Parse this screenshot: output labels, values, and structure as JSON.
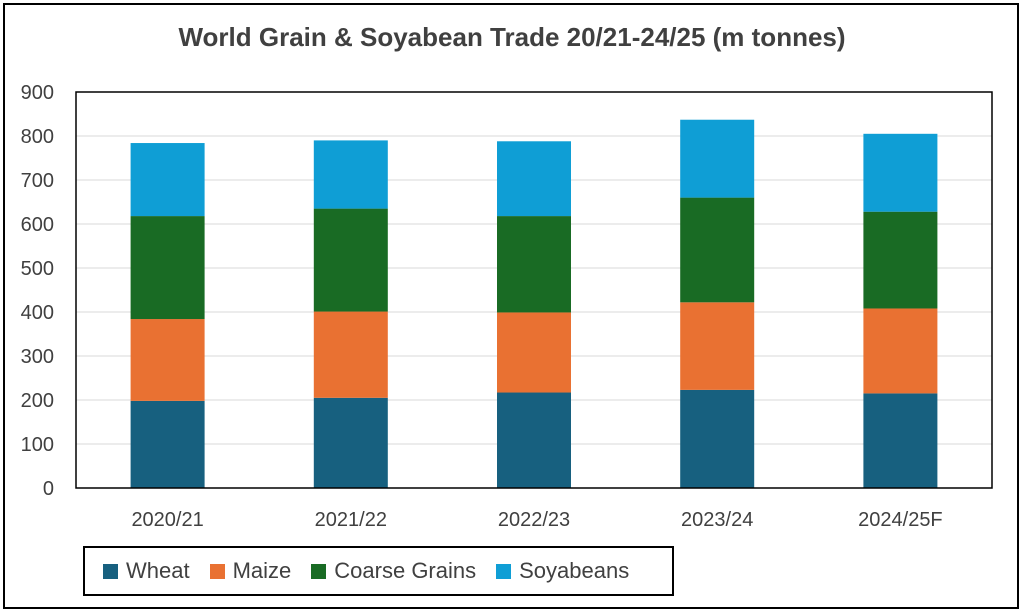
{
  "chart_data": {
    "type": "bar",
    "stacked": true,
    "title": "World Grain & Soyabean Trade 20/21-24/25 (m tonnes)",
    "xlabel": "",
    "ylabel": "",
    "ylim": [
      0,
      900
    ],
    "yticks": [
      0,
      100,
      200,
      300,
      400,
      500,
      600,
      700,
      800,
      900
    ],
    "grid": true,
    "legend_position": "bottom-left",
    "categories": [
      "2020/21",
      "2021/22",
      "2022/23",
      "2023/24",
      "2024/25F"
    ],
    "series": [
      {
        "name": "Wheat",
        "color": "#17607f",
        "values": [
          198,
          205,
          217,
          223,
          215
        ]
      },
      {
        "name": "Maize",
        "color": "#e97132",
        "values": [
          186,
          196,
          182,
          199,
          193
        ]
      },
      {
        "name": "Coarse Grains",
        "color": "#196b24",
        "values": [
          234,
          234,
          219,
          238,
          220
        ]
      },
      {
        "name": "Soyabeans",
        "color": "#0f9ed5",
        "values": [
          166,
          155,
          170,
          177,
          177
        ]
      }
    ]
  }
}
